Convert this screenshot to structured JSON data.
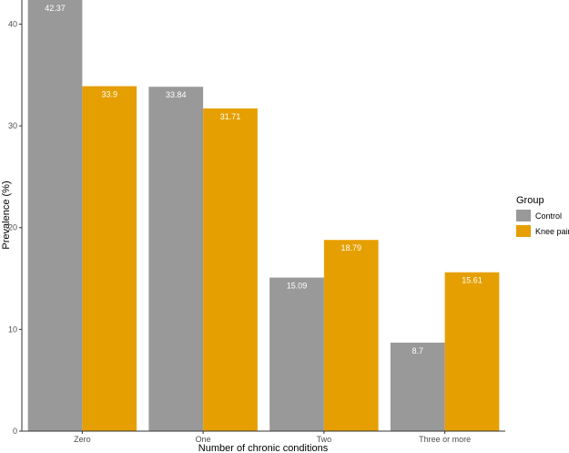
{
  "chart_data": {
    "type": "bar",
    "categories": [
      "Zero",
      "One",
      "Two",
      "Three or more"
    ],
    "series": [
      {
        "name": "Control",
        "values": [
          42.37,
          33.84,
          15.09,
          8.7
        ],
        "color": "#999999"
      },
      {
        "name": "Knee pain",
        "values": [
          33.9,
          31.71,
          18.79,
          15.61
        ],
        "color": "#E69F00"
      }
    ],
    "value_labels": [
      [
        "42.37",
        "33.84",
        "15.09",
        "8.7"
      ],
      [
        "33.9",
        "31.71",
        "18.79",
        "15.61"
      ]
    ],
    "xlabel": "Number of chronic conditions",
    "ylabel": "Prevalence (%)",
    "yticks": [
      0,
      10,
      20,
      30,
      40
    ],
    "ylim": [
      0,
      42.37
    ],
    "grid": false,
    "legend": {
      "title": "Group",
      "position": "right"
    }
  }
}
